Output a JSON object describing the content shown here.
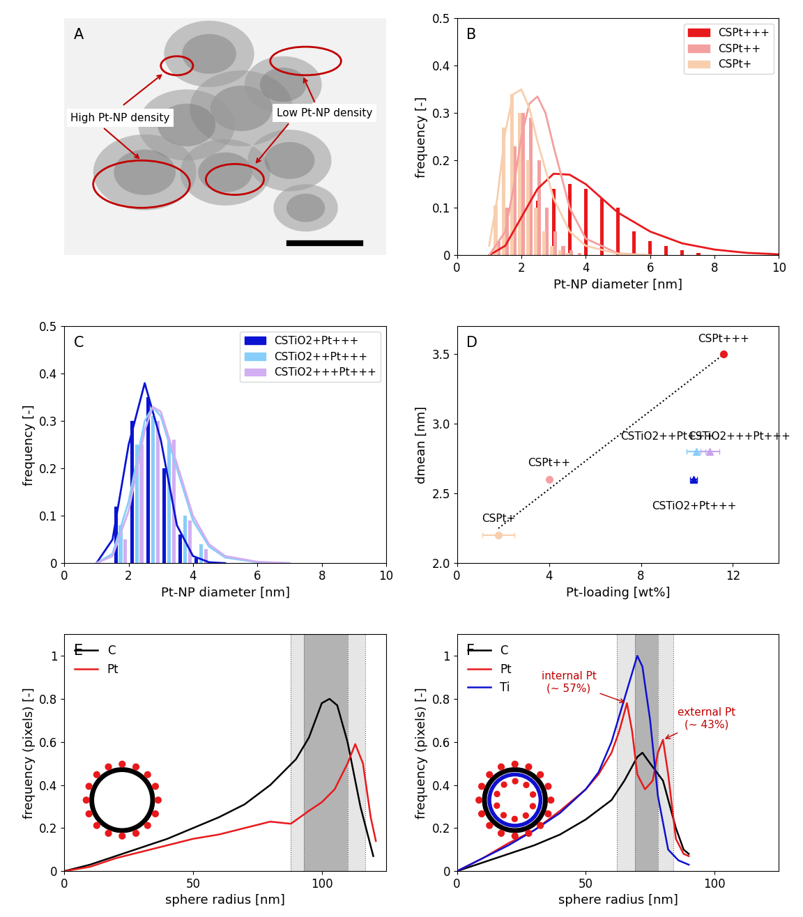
{
  "chart_data": [
    {
      "type": "image",
      "panel": "A",
      "annotations": [
        {
          "text": "High Pt-NP density"
        },
        {
          "text": "Low Pt-NP density"
        }
      ]
    },
    {
      "type": "bar",
      "panel": "B",
      "x_label": "Pt-NP diameter [nm]",
      "y_label": "frequency [-]",
      "xlim": [
        0,
        10
      ],
      "xticks": [
        0,
        2,
        4,
        6,
        8,
        10
      ],
      "ylim": [
        0,
        0.5
      ],
      "yticks": [
        0,
        0.1,
        0.2,
        0.3,
        0.4,
        0.5
      ],
      "legend": "upper right",
      "series": [
        {
          "name": "CSPt+++",
          "color": "#e8191c",
          "x": [
            1.5,
            2.0,
            2.5,
            3.0,
            3.5,
            4.0,
            4.5,
            5.0,
            5.5,
            6.0,
            6.5,
            7.0,
            7.5
          ],
          "values": [
            0.01,
            0.045,
            0.115,
            0.14,
            0.15,
            0.14,
            0.12,
            0.1,
            0.05,
            0.03,
            0.02,
            0.01,
            0.005
          ],
          "fit_x": [
            1.0,
            1.5,
            2.0,
            2.5,
            3.0,
            3.5,
            4.0,
            4.5,
            5.0,
            6.0,
            7.0,
            8.0,
            9.0,
            10.0
          ],
          "fit_values": [
            0.0,
            0.02,
            0.08,
            0.14,
            0.172,
            0.17,
            0.15,
            0.12,
            0.09,
            0.05,
            0.025,
            0.012,
            0.005,
            0.002
          ]
        },
        {
          "name": "CSPt++",
          "color": "#f4a0a0",
          "x": [
            1.3,
            1.55,
            1.8,
            2.05,
            2.3,
            2.55,
            2.8,
            3.05,
            3.3,
            3.55,
            3.8
          ],
          "values": [
            0.03,
            0.1,
            0.23,
            0.3,
            0.29,
            0.2,
            0.1,
            0.05,
            0.02,
            0.01,
            0.005
          ],
          "fit_x": [
            1.0,
            1.5,
            1.75,
            2.0,
            2.25,
            2.5,
            2.75,
            3.0,
            3.5,
            4.0,
            5.0,
            6.0
          ],
          "fit_values": [
            0.0,
            0.05,
            0.14,
            0.25,
            0.32,
            0.335,
            0.3,
            0.23,
            0.1,
            0.035,
            0.004,
            0.0
          ]
        },
        {
          "name": "CSPt+",
          "color": "#f7cfae",
          "x": [
            1.2,
            1.45,
            1.7,
            1.95,
            2.2,
            2.45,
            2.7,
            2.95,
            3.2,
            3.45
          ],
          "values": [
            0.105,
            0.27,
            0.34,
            0.3,
            0.2,
            0.1,
            0.05,
            0.02,
            0.01,
            0.005
          ],
          "fit_x": [
            1.0,
            1.25,
            1.5,
            1.75,
            2.0,
            2.25,
            2.5,
            3.0,
            3.5,
            4.0,
            5.0,
            6.0
          ],
          "fit_values": [
            0.02,
            0.12,
            0.26,
            0.34,
            0.35,
            0.31,
            0.24,
            0.12,
            0.05,
            0.02,
            0.003,
            0.0
          ]
        }
      ]
    },
    {
      "type": "bar",
      "panel": "C",
      "x_label": "Pt-NP diameter [nm]",
      "y_label": "frequency [-]",
      "xlim": [
        0,
        10
      ],
      "xticks": [
        0,
        2,
        4,
        6,
        8,
        10
      ],
      "ylim": [
        0,
        0.5
      ],
      "yticks": [
        0,
        0.1,
        0.2,
        0.3,
        0.4,
        0.5
      ],
      "legend": "upper right",
      "series": [
        {
          "name": "CSTiO2+Pt+++",
          "color": "#0a14d2",
          "x": [
            1.6,
            2.1,
            2.6,
            3.1,
            3.6,
            4.1
          ],
          "values": [
            0.12,
            0.3,
            0.35,
            0.2,
            0.06,
            0.01
          ],
          "fit_x": [
            1.0,
            1.5,
            2.0,
            2.5,
            3.0,
            3.5,
            4.0,
            4.5,
            5.0
          ],
          "fit_values": [
            0.0,
            0.05,
            0.25,
            0.38,
            0.26,
            0.08,
            0.015,
            0.002,
            0.0
          ]
        },
        {
          "name": "CSTiO2++Pt+++",
          "color": "#87cefa",
          "x": [
            1.75,
            2.25,
            2.75,
            3.25,
            3.75,
            4.25
          ],
          "values": [
            0.08,
            0.25,
            0.31,
            0.26,
            0.1,
            0.04
          ],
          "fit_x": [
            1.0,
            1.5,
            2.0,
            2.5,
            2.75,
            3.0,
            3.5,
            4.0,
            4.5,
            5.0,
            6.0,
            7.0
          ],
          "fit_values": [
            0.0,
            0.02,
            0.13,
            0.3,
            0.33,
            0.31,
            0.2,
            0.09,
            0.035,
            0.012,
            0.002,
            0.0
          ]
        },
        {
          "name": "CSTiO2+++Pt+++",
          "color": "#d2aef2",
          "x": [
            1.9,
            2.4,
            2.9,
            3.4,
            3.9,
            4.4
          ],
          "values": [
            0.05,
            0.25,
            0.3,
            0.26,
            0.09,
            0.03
          ],
          "fit_x": [
            1.0,
            1.5,
            2.0,
            2.5,
            2.75,
            3.0,
            3.5,
            4.0,
            4.5,
            5.0,
            6.0,
            7.0
          ],
          "fit_values": [
            0.0,
            0.015,
            0.11,
            0.28,
            0.33,
            0.32,
            0.21,
            0.1,
            0.04,
            0.015,
            0.003,
            0.0
          ]
        }
      ]
    },
    {
      "type": "scatter",
      "panel": "D",
      "x_label": "Pt-loading [wt%]",
      "y_label": "dmean [nm]",
      "xlim": [
        0,
        14
      ],
      "xticks": [
        0,
        4,
        8,
        12
      ],
      "ylim": [
        2.0,
        3.7
      ],
      "yticks": [
        2.0,
        2.5,
        3.0,
        3.5
      ],
      "points": [
        {
          "label": "CSPt+",
          "x": 1.8,
          "y": 2.2,
          "xerr": 0.7,
          "color": "#f7cfae",
          "marker": "circle"
        },
        {
          "label": "CSPt++",
          "x": 4.0,
          "y": 2.6,
          "xerr": 0,
          "color": "#f4a0a0",
          "marker": "circle"
        },
        {
          "label": "CSPt+++",
          "x": 11.6,
          "y": 3.5,
          "xerr": 0,
          "color": "#e8191c",
          "marker": "circle"
        },
        {
          "label": "CSTiO2+Pt+++",
          "x": 10.3,
          "y": 2.6,
          "xerr": 0.15,
          "color": "#0a14d2",
          "marker": "triangle"
        },
        {
          "label": "CSTiO2++Pt+++",
          "x": 10.4,
          "y": 2.8,
          "xerr": 0.4,
          "color": "#87cefa",
          "marker": "triangle"
        },
        {
          "label": "CSTiO2+++Pt+++",
          "x": 11.0,
          "y": 2.8,
          "xerr": 0.4,
          "color": "#c9a3ee",
          "marker": "triangle"
        }
      ],
      "trend": {
        "x": [
          1.8,
          11.6
        ],
        "values": [
          2.25,
          3.5
        ]
      }
    },
    {
      "type": "line",
      "panel": "E",
      "x_label": "sphere radius [nm]",
      "y_label": "frequency (pixels) [-]",
      "xlim": [
        0,
        125
      ],
      "xticks": [
        0,
        50,
        100
      ],
      "ylim": [
        0,
        1.1
      ],
      "yticks": [
        0,
        0.2,
        0.4,
        0.6,
        0.8,
        1
      ],
      "legend": "upper left",
      "bands": [
        [
          88,
          117
        ],
        [
          93,
          110
        ]
      ],
      "series": [
        {
          "name": "C",
          "color": "#000000",
          "x": [
            0,
            10,
            20,
            30,
            40,
            50,
            60,
            70,
            80,
            90,
            95,
            100,
            103,
            106,
            110,
            115,
            120
          ],
          "values": [
            0,
            0.03,
            0.07,
            0.11,
            0.15,
            0.2,
            0.25,
            0.31,
            0.4,
            0.52,
            0.62,
            0.78,
            0.8,
            0.77,
            0.6,
            0.3,
            0.07
          ]
        },
        {
          "name": "Pt",
          "color": "#e8191c",
          "x": [
            0,
            10,
            20,
            30,
            40,
            50,
            60,
            70,
            80,
            88,
            95,
            100,
            105,
            110,
            113,
            116,
            119,
            121
          ],
          "values": [
            0,
            0.02,
            0.06,
            0.09,
            0.12,
            0.15,
            0.17,
            0.2,
            0.23,
            0.22,
            0.28,
            0.32,
            0.38,
            0.5,
            0.59,
            0.5,
            0.25,
            0.14
          ]
        }
      ]
    },
    {
      "type": "line",
      "panel": "F",
      "x_label": "sphere radius [nm]",
      "y_label": "frequency (pixels) [-]",
      "xlim": [
        0,
        125
      ],
      "xticks": [
        0,
        50,
        100
      ],
      "ylim": [
        0,
        1.1
      ],
      "yticks": [
        0,
        0.2,
        0.4,
        0.6,
        0.8,
        1
      ],
      "legend": "upper left",
      "bands": [
        [
          62,
          84
        ],
        [
          69,
          78
        ]
      ],
      "series": [
        {
          "name": "C",
          "color": "#000000",
          "x": [
            0,
            10,
            20,
            30,
            40,
            50,
            60,
            65,
            70,
            72,
            75,
            80,
            85,
            88,
            90
          ],
          "values": [
            0,
            0.04,
            0.08,
            0.12,
            0.17,
            0.24,
            0.33,
            0.42,
            0.53,
            0.55,
            0.5,
            0.42,
            0.2,
            0.1,
            0.08
          ]
        },
        {
          "name": "Pt",
          "color": "#e8191c",
          "x": [
            0,
            10,
            20,
            30,
            40,
            50,
            55,
            60,
            63,
            66,
            68,
            70,
            73,
            76,
            78,
            80,
            82,
            85,
            88,
            90
          ],
          "values": [
            0,
            0.06,
            0.13,
            0.19,
            0.28,
            0.38,
            0.45,
            0.55,
            0.65,
            0.78,
            0.65,
            0.45,
            0.38,
            0.42,
            0.55,
            0.61,
            0.45,
            0.15,
            0.08,
            0.07
          ]
        },
        {
          "name": "Ti",
          "color": "#1010d0",
          "x": [
            0,
            10,
            20,
            30,
            40,
            50,
            55,
            60,
            65,
            70,
            72,
            75,
            78,
            82,
            86,
            90
          ],
          "values": [
            0,
            0.06,
            0.12,
            0.19,
            0.27,
            0.38,
            0.46,
            0.6,
            0.8,
            1.0,
            0.95,
            0.7,
            0.35,
            0.1,
            0.05,
            0.03
          ]
        }
      ],
      "annotations": [
        {
          "text": "internal Pt\n(~ 57%)",
          "x": 66,
          "y": 0.78
        },
        {
          "text": "external Pt\n(~ 43%)",
          "x": 80,
          "y": 0.61
        }
      ]
    }
  ]
}
